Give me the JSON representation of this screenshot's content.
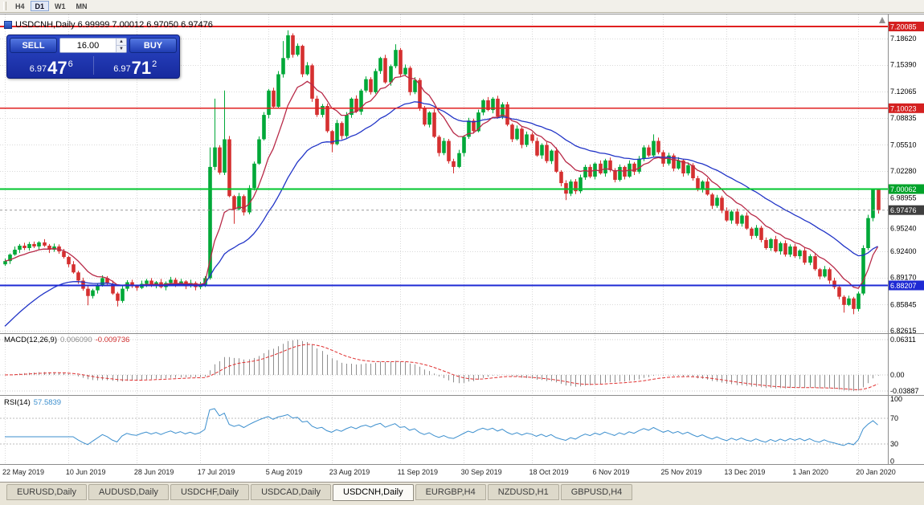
{
  "toolbar": {
    "periods": [
      "H4",
      "D1",
      "W1",
      "MN"
    ],
    "active": "D1"
  },
  "chart": {
    "title_text": "USDCNH,Daily 6.99999 7.00012 6.97050 6.97476"
  },
  "trade_panel": {
    "sell_label": "SELL",
    "buy_label": "BUY",
    "lot_value": "16.00",
    "bid": {
      "prefix": "6.97",
      "big": "47",
      "sup": "6"
    },
    "ask": {
      "prefix": "6.97",
      "big": "71",
      "sup": "2"
    }
  },
  "indicators": {
    "macd": {
      "label": "MACD(12,26,9)",
      "value_main": "0.006090",
      "value_signal": "-0.009736",
      "scale_labels": [
        "0.06311",
        "0.00",
        "-0.03887"
      ]
    },
    "rsi": {
      "label": "RSI(14)",
      "value": "57.5839",
      "scale_labels": [
        "100",
        "70",
        "30",
        "0"
      ],
      "levels": [
        70,
        30
      ]
    }
  },
  "tabs": {
    "items": [
      "EURUSD,Daily",
      "AUDUSD,Daily",
      "USDCHF,Daily",
      "USDCAD,Daily",
      "USDCNH,Daily",
      "EURGBP,H4",
      "NZDUSD,H1",
      "GBPUSD,H4"
    ],
    "active_index": 4
  },
  "chart_data": {
    "type": "candlestick",
    "title": "USDCNH,Daily",
    "symbol": "USDCNH",
    "timeframe": "Daily",
    "ylim": [
      6.8232,
      7.2157
    ],
    "grid_on": true,
    "grid_prices": [
      "7.18620",
      "7.15390",
      "7.12065",
      "7.08835",
      "7.05510",
      "7.02280",
      "6.98955",
      "6.95240",
      "6.92400",
      "6.89170",
      "6.85845",
      "6.82615"
    ],
    "x_ticks": [
      {
        "i": 0,
        "label": "22 May 2019"
      },
      {
        "i": 13,
        "label": "10 Jun 2019"
      },
      {
        "i": 27,
        "label": "28 Jun 2019"
      },
      {
        "i": 40,
        "label": "17 Jul 2019"
      },
      {
        "i": 54,
        "label": "5 Aug 2019"
      },
      {
        "i": 67,
        "label": "23 Aug 2019"
      },
      {
        "i": 81,
        "label": "11 Sep 2019"
      },
      {
        "i": 94,
        "label": "30 Sep 2019"
      },
      {
        "i": 108,
        "label": "18 Oct 2019"
      },
      {
        "i": 121,
        "label": "6 Nov 2019"
      },
      {
        "i": 135,
        "label": "25 Nov 2019"
      },
      {
        "i": 148,
        "label": "13 Dec 2019"
      },
      {
        "i": 162,
        "label": "1 Jan 2020"
      },
      {
        "i": 175,
        "label": "20 Jan 2020"
      }
    ],
    "hlines": [
      {
        "price": 7.20085,
        "label": "7.20085",
        "color": "#e02020",
        "label_bg": "#d42020",
        "width": 2
      },
      {
        "price": 7.10023,
        "label": "7.10023",
        "color": "#e02020",
        "label_bg": "#d42020",
        "width": 1.5
      },
      {
        "price": 7.00062,
        "label": "7.00062",
        "color": "#00c62e",
        "label_bg": "#00a32a",
        "width": 2
      },
      {
        "price": 6.88207,
        "label": "6.88207",
        "color": "#1e2ad4",
        "label_bg": "#1e2ad4",
        "width": 2
      }
    ],
    "current_price": {
      "value": 6.97476,
      "label": "6.97476",
      "label_bg": "#3f3f3f",
      "line_color": "#999999"
    },
    "ma_fast": {
      "period": 10,
      "color": "#b82a48"
    },
    "ma_slow": {
      "period": 30,
      "color": "#2134c7",
      "seed": 6.8262
    },
    "macd": {
      "fast": 12,
      "slow": 26,
      "signal": 9,
      "hist_color": "#8f8f8f",
      "signal_color": "#e03030"
    },
    "rsi": {
      "period": 14,
      "color": "#3c8fce"
    },
    "colors": {
      "bull": "#00a838",
      "bear": "#d53030",
      "grid": "#d9d9d9",
      "bg": "#ffffff"
    },
    "candles": [
      [
        6.908,
        6.915,
        6.906,
        6.912
      ],
      [
        6.912,
        6.9215,
        6.9085,
        6.92
      ],
      [
        6.92,
        6.93,
        6.9185,
        6.926
      ],
      [
        6.926,
        6.933,
        6.922,
        6.931
      ],
      [
        6.931,
        6.9345,
        6.9255,
        6.928
      ],
      [
        6.928,
        6.9355,
        6.925,
        6.933
      ],
      [
        6.933,
        6.936,
        6.928,
        6.93
      ],
      [
        6.93,
        6.9365,
        6.9265,
        6.935
      ],
      [
        6.935,
        6.939,
        6.9295,
        6.931
      ],
      [
        6.931,
        6.933,
        6.922,
        6.926
      ],
      [
        6.926,
        6.9335,
        6.9235,
        6.93
      ],
      [
        6.93,
        6.9325,
        6.921,
        6.924
      ],
      [
        6.924,
        6.927,
        6.915,
        6.917
      ],
      [
        6.917,
        6.9185,
        6.9045,
        6.908
      ],
      [
        6.908,
        6.912,
        6.8965,
        6.898
      ],
      [
        6.898,
        6.9,
        6.884,
        6.888
      ],
      [
        6.888,
        6.8915,
        6.8755,
        6.878
      ],
      [
        6.878,
        6.8815,
        6.8575,
        6.869
      ],
      [
        6.869,
        6.878,
        6.866,
        6.876
      ],
      [
        6.876,
        6.8845,
        6.872,
        6.883
      ],
      [
        6.883,
        6.8945,
        6.8805,
        6.891
      ],
      [
        6.891,
        6.8935,
        6.881,
        6.884
      ],
      [
        6.884,
        6.888,
        6.8705,
        6.872
      ],
      [
        6.872,
        6.874,
        6.856,
        6.863
      ],
      [
        6.863,
        6.8815,
        6.8605,
        6.878
      ],
      [
        6.878,
        6.8885,
        6.875,
        6.886
      ],
      [
        6.886,
        6.889,
        6.879,
        6.881
      ],
      [
        6.881,
        6.8825,
        6.8755,
        6.879
      ],
      [
        6.879,
        6.888,
        6.8775,
        6.884
      ],
      [
        6.884,
        6.89,
        6.88,
        6.888
      ],
      [
        6.888,
        6.891,
        6.88,
        6.882
      ],
      [
        6.882,
        6.8875,
        6.8785,
        6.886
      ],
      [
        6.886,
        6.89,
        6.8785,
        6.88
      ],
      [
        6.88,
        6.887,
        6.876,
        6.885
      ],
      [
        6.885,
        6.8925,
        6.8825,
        6.889
      ],
      [
        6.889,
        6.8915,
        6.88,
        6.883
      ],
      [
        6.883,
        6.89,
        6.881,
        6.887
      ],
      [
        6.887,
        6.8885,
        6.8775,
        6.881
      ],
      [
        6.881,
        6.889,
        6.8795,
        6.885
      ],
      [
        6.885,
        6.887,
        6.876,
        6.88
      ],
      [
        6.88,
        6.8865,
        6.8775,
        6.883
      ],
      [
        6.883,
        6.8935,
        6.88,
        6.891
      ],
      [
        6.891,
        7.052,
        6.889,
        7.028
      ],
      [
        7.028,
        7.112,
        7.024,
        7.052
      ],
      [
        7.052,
        7.0545,
        7.0185,
        7.021
      ],
      [
        7.021,
        7.122,
        7.018,
        7.062
      ],
      [
        7.062,
        7.066,
        6.9905,
        6.992
      ],
      [
        6.992,
        6.9935,
        6.958,
        6.976
      ],
      [
        6.976,
        6.996,
        6.9745,
        6.992
      ],
      [
        6.992,
        6.994,
        6.968,
        6.972
      ],
      [
        6.972,
        7.0055,
        6.9695,
        7.002
      ],
      [
        7.002,
        7.0345,
        6.999,
        7.032
      ],
      [
        7.032,
        7.0655,
        7.0305,
        7.062
      ],
      [
        7.062,
        7.0955,
        7.0605,
        7.092
      ],
      [
        7.092,
        7.124,
        7.088,
        7.122
      ],
      [
        7.122,
        7.1255,
        7.0995,
        7.102
      ],
      [
        7.102,
        7.146,
        7.1005,
        7.142
      ],
      [
        7.142,
        7.183,
        7.138,
        7.162
      ],
      [
        7.162,
        7.1962,
        7.1595,
        7.19
      ],
      [
        7.19,
        7.1925,
        7.1625,
        7.166
      ],
      [
        7.166,
        7.18,
        7.164,
        7.177
      ],
      [
        7.177,
        7.1785,
        7.1385,
        7.142
      ],
      [
        7.142,
        7.157,
        7.1405,
        7.153
      ],
      [
        7.153,
        7.155,
        7.108,
        7.112
      ],
      [
        7.112,
        7.1155,
        7.0895,
        7.092
      ],
      [
        7.092,
        7.1055,
        7.089,
        7.103
      ],
      [
        7.103,
        7.106,
        7.07,
        7.072
      ],
      [
        7.072,
        7.0735,
        7.046,
        7.056
      ],
      [
        7.056,
        7.086,
        7.0545,
        7.082
      ],
      [
        7.082,
        7.084,
        7.062,
        7.066
      ],
      [
        7.066,
        7.0955,
        7.0635,
        7.092
      ],
      [
        7.092,
        7.1135,
        7.0885,
        7.112
      ],
      [
        7.112,
        7.116,
        7.0945,
        7.096
      ],
      [
        7.096,
        7.124,
        7.092,
        7.122
      ],
      [
        7.122,
        7.1395,
        7.1195,
        7.136
      ],
      [
        7.136,
        7.1385,
        7.117,
        7.12
      ],
      [
        7.12,
        7.149,
        7.118,
        7.146
      ],
      [
        7.146,
        7.1635,
        7.1425,
        7.162
      ],
      [
        7.162,
        7.166,
        7.1305,
        7.132
      ],
      [
        7.132,
        7.154,
        7.128,
        7.152
      ],
      [
        7.152,
        7.179,
        7.1495,
        7.172
      ],
      [
        7.172,
        7.1745,
        7.139,
        7.142
      ],
      [
        7.142,
        7.154,
        7.1405,
        7.15
      ],
      [
        7.15,
        7.152,
        7.116,
        7.12
      ],
      [
        7.12,
        7.1385,
        7.1175,
        7.135
      ],
      [
        7.135,
        7.1375,
        7.097,
        7.1
      ],
      [
        7.1,
        7.103,
        7.078,
        7.08
      ],
      [
        7.08,
        7.0965,
        7.0765,
        7.095
      ],
      [
        7.095,
        7.099,
        7.0635,
        7.065
      ],
      [
        7.065,
        7.067,
        7.041,
        7.045
      ],
      [
        7.045,
        7.0635,
        7.0425,
        7.06
      ],
      [
        7.06,
        7.0625,
        7.032,
        7.035
      ],
      [
        7.035,
        7.038,
        7.02,
        7.028
      ],
      [
        7.028,
        7.049,
        7.0265,
        7.045
      ],
      [
        7.045,
        7.067,
        7.041,
        7.065
      ],
      [
        7.065,
        7.0885,
        7.0625,
        7.085
      ],
      [
        7.085,
        7.0875,
        7.069,
        7.072
      ],
      [
        7.072,
        7.0985,
        7.0705,
        7.095
      ],
      [
        7.095,
        7.1115,
        7.0915,
        7.11
      ],
      [
        7.11,
        7.114,
        7.0965,
        7.098
      ],
      [
        7.098,
        7.114,
        7.094,
        7.112
      ],
      [
        7.112,
        7.1155,
        7.0875,
        7.09
      ],
      [
        7.09,
        7.1075,
        7.087,
        7.105
      ],
      [
        7.105,
        7.108,
        7.078,
        7.08
      ],
      [
        7.08,
        7.0815,
        7.0585,
        7.062
      ],
      [
        7.062,
        7.079,
        7.0605,
        7.075
      ],
      [
        7.075,
        7.077,
        7.051,
        7.055
      ],
      [
        7.055,
        7.0715,
        7.0525,
        7.068
      ],
      [
        7.068,
        7.0705,
        7.057,
        7.06
      ],
      [
        7.06,
        7.064,
        7.0405,
        7.042
      ],
      [
        7.042,
        7.057,
        7.038,
        7.055
      ],
      [
        7.055,
        7.0585,
        7.0325,
        7.035
      ],
      [
        7.035,
        7.0495,
        7.0315,
        7.048
      ],
      [
        7.048,
        7.052,
        7.0205,
        7.022
      ],
      [
        7.022,
        7.024,
        7.004,
        7.008
      ],
      [
        7.008,
        7.0115,
        6.987,
        6.995
      ],
      [
        6.995,
        7.0125,
        6.992,
        7.01
      ],
      [
        7.01,
        7.013,
        6.9945,
        6.998
      ],
      [
        6.998,
        7.0185,
        6.9955,
        7.015
      ],
      [
        7.015,
        7.0305,
        7.012,
        7.028
      ],
      [
        7.028,
        7.031,
        7.014,
        7.016
      ],
      [
        7.016,
        7.0335,
        7.0125,
        7.032
      ],
      [
        7.032,
        7.036,
        7.0185,
        7.02
      ],
      [
        7.02,
        7.038,
        7.016,
        7.036
      ],
      [
        7.036,
        7.0395,
        7.0215,
        7.024
      ],
      [
        7.024,
        7.0265,
        7.009,
        7.012
      ],
      [
        7.012,
        7.031,
        7.01,
        7.028
      ],
      [
        7.028,
        7.0295,
        7.0125,
        7.016
      ],
      [
        7.016,
        7.036,
        7.0145,
        7.032
      ],
      [
        7.032,
        7.034,
        7.018,
        7.022
      ],
      [
        7.022,
        7.0415,
        7.0195,
        7.038
      ],
      [
        7.038,
        7.0545,
        7.035,
        7.052
      ],
      [
        7.052,
        7.055,
        7.04,
        7.042
      ],
      [
        7.042,
        7.068,
        7.0405,
        7.06
      ],
      [
        7.06,
        7.064,
        7.0435,
        7.046
      ],
      [
        7.046,
        7.0485,
        7.028,
        7.032
      ],
      [
        7.032,
        7.0455,
        7.0295,
        7.042
      ],
      [
        7.042,
        7.0445,
        7.0225,
        7.026
      ],
      [
        7.026,
        7.04,
        7.0245,
        7.036
      ],
      [
        7.036,
        7.038,
        7.016,
        7.02
      ],
      [
        7.02,
        7.0335,
        7.0175,
        7.03
      ],
      [
        7.03,
        7.0325,
        7.011,
        7.014
      ],
      [
        7.014,
        7.017,
        6.998,
        7.0
      ],
      [
        7.0,
        7.0115,
        6.9965,
        7.01
      ],
      [
        7.01,
        7.014,
        6.9925,
        6.994
      ],
      [
        6.994,
        6.996,
        6.976,
        6.98
      ],
      [
        6.98,
        6.9935,
        6.9775,
        6.99
      ],
      [
        6.99,
        6.9925,
        6.971,
        6.974
      ],
      [
        6.974,
        6.978,
        6.9605,
        6.962
      ],
      [
        6.962,
        6.975,
        6.958,
        6.973
      ],
      [
        6.973,
        6.9765,
        6.9555,
        6.958
      ],
      [
        6.958,
        6.9695,
        6.9545,
        6.968
      ],
      [
        6.968,
        6.972,
        6.9505,
        6.952
      ],
      [
        6.952,
        6.954,
        6.939,
        6.943
      ],
      [
        6.943,
        6.9565,
        6.9405,
        6.953
      ],
      [
        6.953,
        6.9555,
        6.935,
        6.938
      ],
      [
        6.938,
        6.941,
        6.926,
        6.928
      ],
      [
        6.928,
        6.9405,
        6.9245,
        6.939
      ],
      [
        6.939,
        6.943,
        6.9225,
        6.924
      ],
      [
        6.924,
        6.936,
        6.92,
        6.934
      ],
      [
        6.934,
        6.9375,
        6.9175,
        6.92
      ],
      [
        6.92,
        6.9325,
        6.917,
        6.93
      ],
      [
        6.93,
        6.933,
        6.916,
        6.918
      ],
      [
        6.918,
        6.9265,
        6.9145,
        6.925
      ],
      [
        6.925,
        6.9285,
        6.9075,
        6.91
      ],
      [
        6.91,
        6.9205,
        6.907,
        6.918
      ],
      [
        6.918,
        6.921,
        6.9,
        6.902
      ],
      [
        6.902,
        6.9035,
        6.8895,
        6.893
      ],
      [
        6.893,
        6.906,
        6.8915,
        6.902
      ],
      [
        6.902,
        6.904,
        6.884,
        6.888
      ],
      [
        6.888,
        6.8915,
        6.8775,
        6.88
      ],
      [
        6.88,
        6.8825,
        6.865,
        6.868
      ],
      [
        6.868,
        6.87,
        6.8485,
        6.858
      ],
      [
        6.858,
        6.8695,
        6.8565,
        6.866
      ],
      [
        6.866,
        6.868,
        6.8465,
        6.853
      ],
      [
        6.853,
        6.8745,
        6.85,
        6.872
      ],
      [
        6.872,
        6.9315,
        6.87,
        6.928
      ],
      [
        6.928,
        6.969,
        6.9255,
        6.965
      ],
      [
        6.965,
        7.0001,
        6.961,
        6.99999
      ],
      [
        6.99999,
        7.00012,
        6.9705,
        6.97476
      ]
    ]
  }
}
